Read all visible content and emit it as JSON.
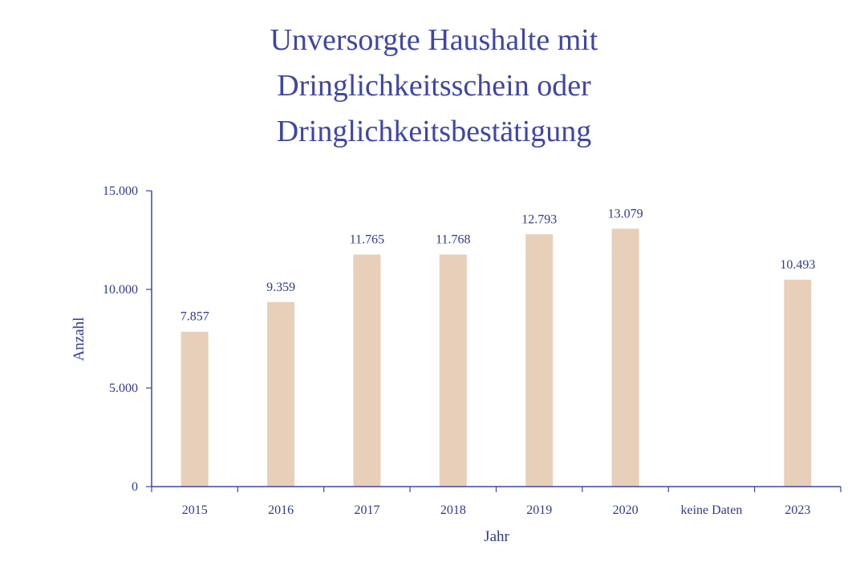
{
  "chart_data": {
    "type": "bar",
    "title_lines": [
      "Unversorgte Haushalte mit",
      "Dringlichkeitsschein oder",
      "Dringlichkeitsbestätigung"
    ],
    "xlabel": "Jahr",
    "ylabel": "Anzahl",
    "categories": [
      "2015",
      "2016",
      "2017",
      "2018",
      "2019",
      "2020",
      "keine Daten",
      "2023"
    ],
    "values": [
      7857,
      9359,
      11765,
      11768,
      12793,
      13079,
      null,
      10493
    ],
    "data_labels": [
      "7.857",
      "9.359",
      "11.765",
      "11.768",
      "12.793",
      "13.079",
      "",
      "10.493"
    ],
    "ylim": [
      0,
      15000
    ],
    "yticks": [
      0,
      5000,
      10000,
      15000
    ],
    "ytick_labels": [
      "0",
      "5.000",
      "10.000",
      "15.000"
    ],
    "grid": false,
    "colors": {
      "bar": "#e8cfba",
      "text": "#2f3a8f",
      "title": "#3f46a3",
      "axis": "#3b47a8"
    }
  }
}
